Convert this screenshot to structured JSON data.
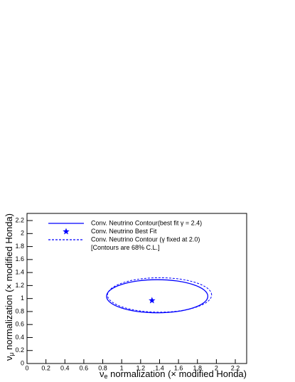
{
  "chart_data": {
    "type": "line",
    "x_label": {
      "symbol": "ν",
      "subscript": "e",
      "text": " normalization (× modified Honda)"
    },
    "y_label": {
      "symbol": "ν",
      "subscript": "μ",
      "text": " normalization (× modified Honda)"
    },
    "xlim": [
      0,
      2.32
    ],
    "ylim": [
      0,
      2.31
    ],
    "xticks": [
      0,
      0.2,
      0.4,
      0.6,
      0.8,
      1,
      1.2,
      1.4,
      1.6,
      1.8,
      2,
      2.2
    ],
    "yticks": [
      0,
      0.2,
      0.4,
      0.6,
      0.8,
      1,
      1.2,
      1.4,
      1.6,
      1.8,
      2,
      2.2
    ],
    "series": [
      {
        "name": "Conv. Neutrino Contour(best fit γ = 2.4)",
        "color": "#0000ff",
        "style": "solid",
        "x": [
          1.91,
          1.869,
          1.753,
          1.58,
          1.375,
          1.17,
          0.997,
          0.881,
          0.84,
          0.881,
          0.997,
          1.17,
          1.375,
          1.58,
          1.753,
          1.869,
          1.91
        ],
        "values": [
          1.035,
          1.133,
          1.215,
          1.271,
          1.29,
          1.271,
          1.215,
          1.133,
          1.035,
          0.937,
          0.855,
          0.799,
          0.78,
          0.799,
          0.855,
          0.937,
          1.035
        ]
      },
      {
        "name": "Conv. Neutrino Best Fit",
        "color": "#0000ff",
        "style": "star",
        "x": [
          1.32
        ],
        "values": [
          0.97
        ]
      },
      {
        "name": "Conv. Neutrino Contour (γ fixed at 2.0)",
        "color": "#0000ff",
        "style": "dashed",
        "x": [
          1.95,
          1.908,
          1.789,
          1.611,
          1.4,
          1.189,
          1.011,
          0.892,
          0.85,
          0.892,
          1.011,
          1.189,
          1.4,
          1.611,
          1.789,
          1.908,
          1.95
        ],
        "values": [
          1.055,
          1.156,
          1.242,
          1.3,
          1.32,
          1.3,
          1.242,
          1.156,
          1.055,
          0.954,
          0.868,
          0.81,
          0.79,
          0.81,
          0.868,
          0.954,
          1.055
        ]
      }
    ],
    "legend_note": "[Contours are 68% C.L.]"
  }
}
